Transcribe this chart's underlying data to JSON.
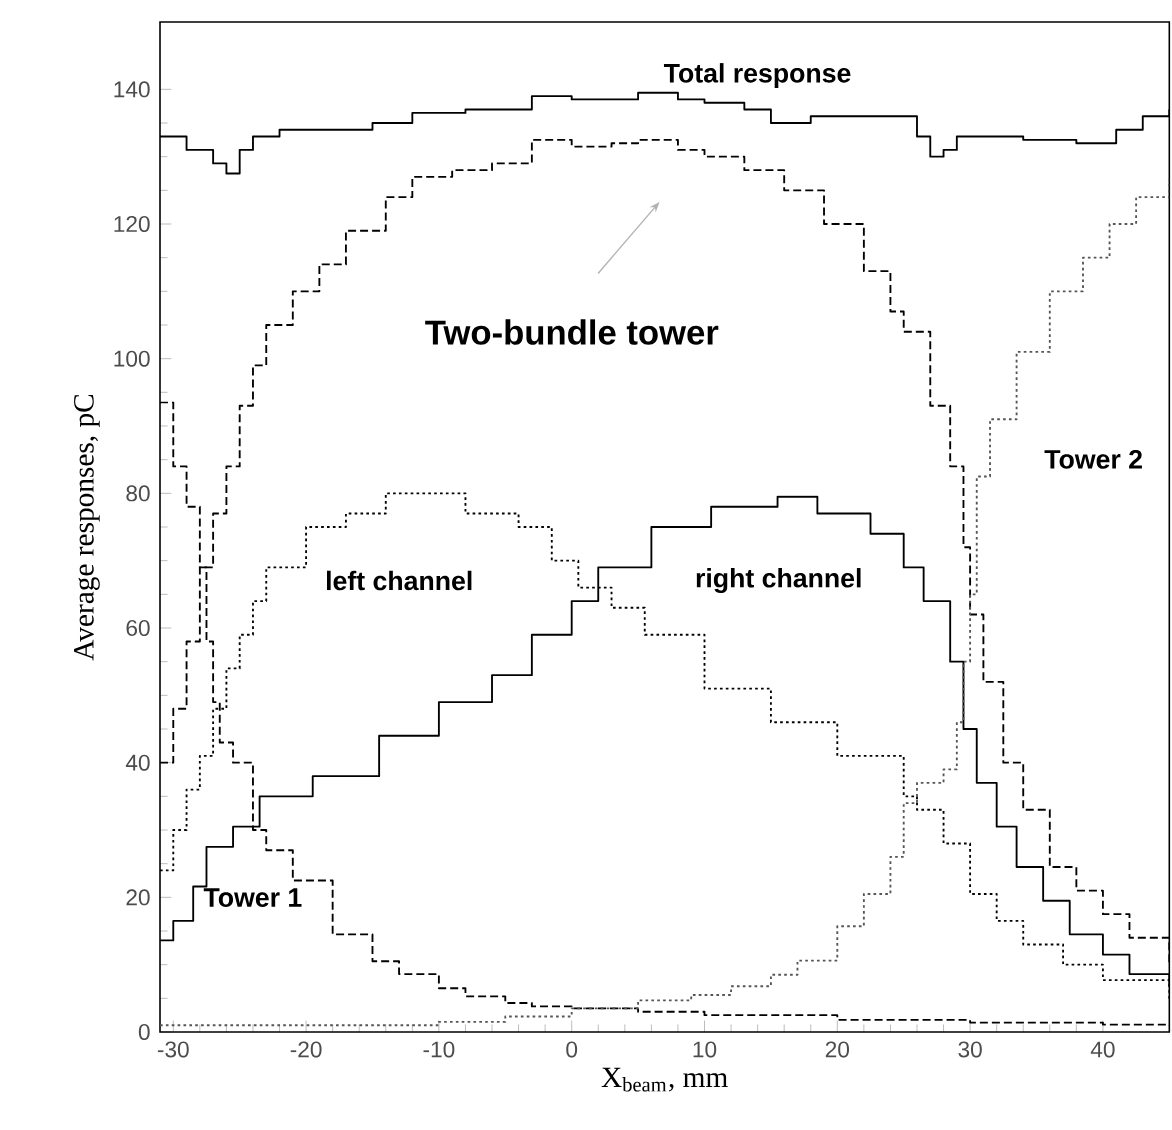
{
  "chart_data": {
    "type": "step",
    "xlabel": "X$_{beam}$, mm",
    "ylabel": "Average responses, pC",
    "xlim": [
      -31,
      45
    ],
    "ylim": [
      0,
      150
    ],
    "xticks": [
      -30,
      -20,
      -10,
      0,
      10,
      20,
      30,
      40
    ],
    "yticks": [
      0,
      20,
      40,
      60,
      80,
      100,
      120,
      140
    ],
    "grid": false,
    "series": [
      {
        "name": "Total response",
        "color": "#000000",
        "line_style": "solid",
        "x": [
          -31,
          -29,
          -27,
          -26,
          -25,
          -24,
          -22,
          -20,
          -17,
          -15,
          -12,
          -8,
          -5,
          -3,
          0,
          3,
          5,
          8,
          10,
          13,
          15,
          18,
          22,
          25,
          26,
          27,
          28,
          29,
          31,
          34,
          36,
          38,
          41,
          43,
          45
        ],
        "values": [
          133,
          131,
          129,
          127.5,
          131,
          133,
          134,
          134,
          134,
          135,
          136.5,
          137,
          137,
          139,
          138.5,
          138.5,
          139.5,
          138.5,
          138,
          137,
          135,
          136,
          136,
          136,
          133,
          130,
          131,
          133,
          133,
          132.5,
          132.5,
          132,
          134,
          136,
          137
        ]
      },
      {
        "name": "Two-bundle tower",
        "color": "#000000",
        "line_style": "dashed",
        "x": [
          -31,
          -30,
          -29,
          -28,
          -27,
          -26,
          -25,
          -24,
          -23,
          -21,
          -19,
          -17,
          -14,
          -12,
          -9,
          -6,
          -3,
          0,
          3,
          5,
          8,
          10,
          13,
          16,
          19,
          22,
          24,
          25,
          27,
          28.5,
          29.5,
          30,
          31,
          32.5,
          34,
          36,
          38,
          40,
          42,
          45
        ],
        "values": [
          40,
          48,
          58,
          69,
          77,
          84,
          93,
          99,
          105,
          110,
          114,
          119,
          124,
          127,
          128,
          129,
          132.5,
          131.5,
          132,
          132.5,
          131,
          130,
          128,
          125,
          120,
          113,
          107,
          104,
          93,
          84,
          72,
          62,
          52,
          40,
          33,
          24.5,
          21,
          17.5,
          14,
          10
        ]
      },
      {
        "name": "left channel",
        "color": "#000000",
        "line_style": "dotted",
        "x": [
          -31,
          -30,
          -29,
          -28,
          -27,
          -26,
          -25,
          -24,
          -23,
          -20,
          -17,
          -14,
          -12,
          -8,
          -4,
          -1.5,
          0.5,
          3,
          5.5,
          10,
          15,
          20,
          25,
          26,
          28,
          30,
          32,
          34,
          37,
          40,
          45
        ],
        "values": [
          24,
          30,
          36,
          41,
          48,
          54,
          59,
          64,
          69,
          75,
          77,
          80,
          80,
          77,
          75,
          70,
          66,
          63,
          59,
          51,
          46,
          41,
          35,
          33,
          28,
          20.5,
          16.5,
          13,
          10,
          7.7,
          4.7
        ]
      },
      {
        "name": "right channel",
        "color": "#000000",
        "line_style": "solid",
        "x": [
          -31,
          -30,
          -28.5,
          -27.5,
          -25.5,
          -23.5,
          -19.5,
          -14.5,
          -10,
          -6,
          -3,
          0,
          2,
          6,
          10.5,
          15.5,
          18.5,
          22.5,
          25,
          26.5,
          28.5,
          29.5,
          30.5,
          32,
          33.5,
          35.5,
          37.5,
          40,
          42,
          45
        ],
        "values": [
          13.6,
          16.5,
          21.6,
          27.5,
          30.5,
          35,
          38,
          44,
          49,
          53,
          59,
          64,
          69,
          75,
          78,
          79.5,
          77,
          74,
          69,
          64,
          55,
          45,
          37,
          30.5,
          24.5,
          19.5,
          14.5,
          11.5,
          8.6,
          6.8
        ]
      },
      {
        "name": "Tower 1",
        "color": "#000000",
        "line_style": "dashed",
        "x": [
          -31,
          -30,
          -29,
          -28,
          -27.5,
          -27,
          -26.5,
          -25.5,
          -24,
          -23,
          -21,
          -18,
          -15,
          -13,
          -10,
          -8,
          -5,
          -3,
          0,
          5,
          10,
          20,
          30,
          40,
          45
        ],
        "values": [
          93.5,
          84,
          78,
          69,
          58,
          49,
          43,
          40,
          30,
          27,
          22.5,
          14.5,
          10.5,
          8.6,
          6.5,
          5.3,
          4.3,
          3.8,
          3.5,
          3,
          2.5,
          1.8,
          1.4,
          1.1,
          1
        ]
      },
      {
        "name": "Tower 2",
        "color": "#555555",
        "line_style": "dotted",
        "x": [
          -31,
          -20,
          -10,
          -5,
          0,
          5,
          9,
          12,
          15,
          17,
          20,
          22,
          24,
          25,
          26,
          28,
          29,
          29.5,
          30,
          30.5,
          31.5,
          33.5,
          36,
          38.5,
          40.5,
          42.5,
          45
        ],
        "values": [
          1,
          1,
          1.5,
          2.3,
          3.5,
          4.7,
          5.5,
          6.8,
          8.5,
          10.6,
          15.7,
          20.5,
          26,
          34,
          37,
          39,
          46,
          55,
          65,
          82.5,
          91,
          101,
          110,
          115,
          120,
          124,
          126.6
        ]
      }
    ]
  }
}
